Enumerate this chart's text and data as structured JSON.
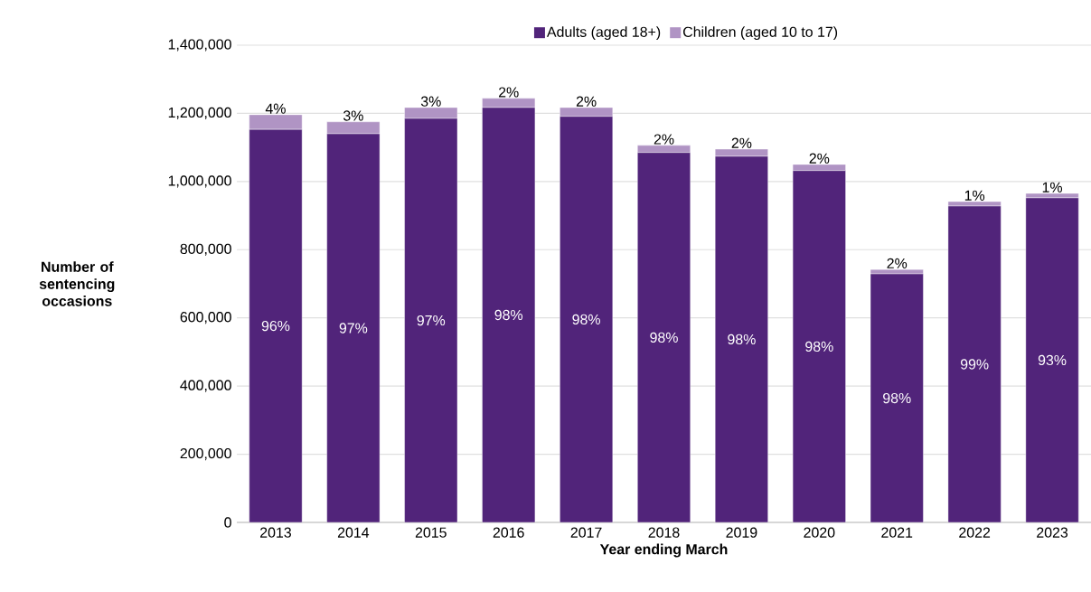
{
  "chart_data": {
    "type": "bar",
    "stacked": true,
    "xlabel": "Year ending March",
    "ylabel": "Number of sentencing occasions",
    "categories": [
      "2013",
      "2014",
      "2015",
      "2016",
      "2017",
      "2018",
      "2019",
      "2020",
      "2021",
      "2022",
      "2023"
    ],
    "series": [
      {
        "name": "Adults (aged 18+)",
        "color": "#51247a",
        "values": [
          1153000,
          1140000,
          1185000,
          1217000,
          1191000,
          1085000,
          1074000,
          1032000,
          729000,
          928000,
          952000
        ]
      },
      {
        "name": "Children (aged 10 to 17)",
        "color": "#b094c4",
        "values": [
          43000,
          35000,
          32000,
          27000,
          26000,
          21000,
          21000,
          18000,
          13000,
          13000,
          13000
        ]
      }
    ],
    "annotations": [
      "96%",
      "97%",
      "97%",
      "98%",
      "98%",
      "98%",
      "98%",
      "98%",
      "98%",
      "99%",
      "93%",
      {
        "text": "4%",
        "x": "2013",
        "y": 1196000
      },
      {
        "text": "3%",
        "x": "2014",
        "y": 1175000
      },
      {
        "text": "3%",
        "x": "2015",
        "y": 1217000
      },
      {
        "text": "2%",
        "x": "2016",
        "y": 1244000
      },
      {
        "text": "2%",
        "x": "2017",
        "y": 1217000
      },
      {
        "text": "2%",
        "x": "2018",
        "y": 1106000
      },
      {
        "text": "2%",
        "x": "2019",
        "y": 1095000
      },
      {
        "text": "2%",
        "x": "2020",
        "y": 1050000
      },
      {
        "text": "2%",
        "x": "2021",
        "y": 742000
      },
      {
        "text": "1%",
        "x": "2022",
        "y": 941000
      },
      {
        "text": "1%",
        "x": "2023",
        "y": 965000
      }
    ],
    "ylim": [
      0,
      1400000
    ],
    "yticks": [
      0,
      {
        "value": 200000,
        "label": "200,000"
      },
      {
        "value": 400000,
        "label": "400,000"
      },
      {
        "value": 600000,
        "label": "600,000"
      },
      {
        "value": 800000,
        "label": "800,000"
      },
      {
        "value": 1000000,
        "label": "1,000,000"
      },
      {
        "value": 1200000,
        "label": "1,200,000"
      },
      {
        "value": 1400000,
        "label": "1,400,000"
      }
    ],
    "grid": "y",
    "legend": "top"
  }
}
